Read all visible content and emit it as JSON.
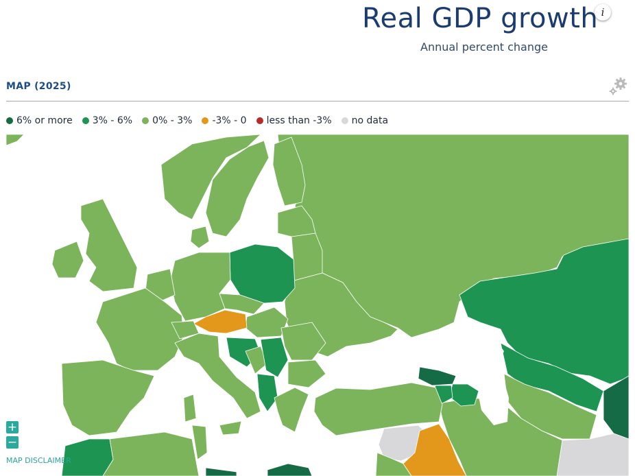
{
  "header": {
    "title": "Real GDP growth",
    "subtitle": "Annual percent change",
    "info_label": "i"
  },
  "section": {
    "title": "MAP (2025)"
  },
  "legend": {
    "items": [
      {
        "label": "6% or more",
        "color": "#156b45"
      },
      {
        "label": "3% - 6%",
        "color": "#1d9452"
      },
      {
        "label": "0% - 3%",
        "color": "#7cb45c"
      },
      {
        "label": "-3% - 0",
        "color": "#e4981b"
      },
      {
        "label": "less than -3%",
        "color": "#b72b2b"
      },
      {
        "label": "no data",
        "color": "#d8d8da"
      }
    ]
  },
  "map": {
    "icons": [
      "plus-icon",
      "minus-icon",
      "gear-icon",
      "info-icon"
    ],
    "zoom_in_label": "+",
    "zoom_out_label": "−",
    "disclaimer": "MAP DISCLAIMER"
  }
}
